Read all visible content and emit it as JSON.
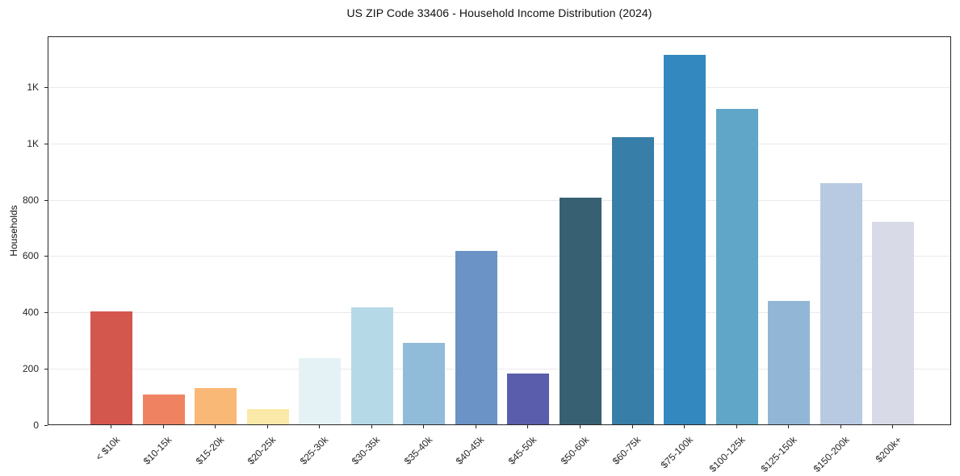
{
  "chart_data": {
    "type": "bar",
    "title": "US ZIP Code 33406 - Household Income Distribution (2024)",
    "xlabel": "",
    "ylabel": "Households",
    "categories": [
      "< $10k",
      "$10-15k",
      "$15-20k",
      "$20-25k",
      "$25-30k",
      "$30-35k",
      "$35-40k",
      "$40-45k",
      "$45-50k",
      "$50-60k",
      "$60-75k",
      "$75-100k",
      "$100-125k",
      "$125-150k",
      "$150-200k",
      "$200k+"
    ],
    "values": [
      400,
      105,
      130,
      55,
      235,
      415,
      290,
      615,
      180,
      805,
      1020,
      1310,
      1120,
      437,
      855,
      720
    ],
    "bar_colors": [
      "#d4574e",
      "#ef8361",
      "#fab876",
      "#fbe9a9",
      "#e4f2f6",
      "#b6d9e7",
      "#91bcd9",
      "#6b93c6",
      "#5a5dab",
      "#386073",
      "#377ea9",
      "#3389bf",
      "#60a6c8",
      "#92b7d6",
      "#b8cae2",
      "#d9dae8"
    ],
    "ylim": [
      0,
      1380
    ],
    "yticks": [
      {
        "value": 0,
        "label": "0"
      },
      {
        "value": 200,
        "label": "200"
      },
      {
        "value": 400,
        "label": "400"
      },
      {
        "value": 600,
        "label": "600"
      },
      {
        "value": 800,
        "label": "800"
      },
      {
        "value": 1000,
        "label": "1K"
      },
      {
        "value": 1200,
        "label": "1K"
      }
    ],
    "grid": "horizontal",
    "legend": "none"
  }
}
